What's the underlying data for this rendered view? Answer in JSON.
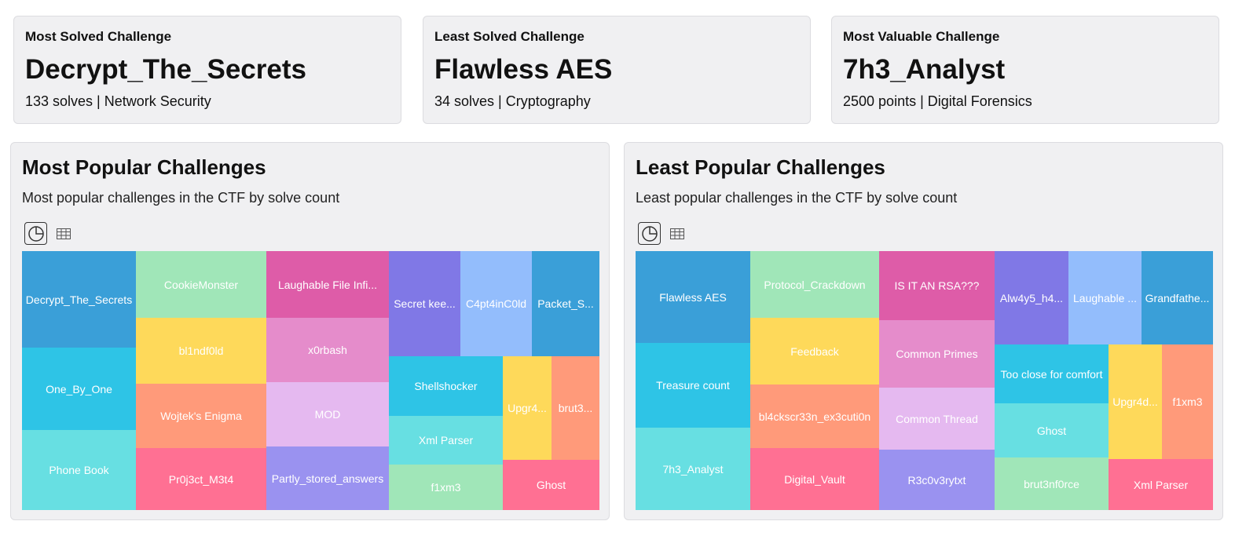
{
  "stats": [
    {
      "label": "Most Solved Challenge",
      "value": "Decrypt_The_Secrets",
      "sub": "133 solves | Network Security"
    },
    {
      "label": "Least Solved Challenge",
      "value": "Flawless AES",
      "sub": "34 solves | Cryptography"
    },
    {
      "label": "Most Valuable Challenge",
      "value": "7h3_Analyst",
      "sub": "2500 points | Digital Forensics"
    }
  ],
  "panels": [
    {
      "title": "Most Popular Challenges",
      "desc": "Most popular challenges in the CTF by solve count",
      "tiles": [
        {
          "label": "Decrypt_The_Secrets",
          "color": "#3a9fd8"
        },
        {
          "label": "One_By_One",
          "color": "#2ec4e6"
        },
        {
          "label": "Phone Book",
          "color": "#67dfe2"
        },
        {
          "label": "CookieMonster",
          "color": "#a0e6b8"
        },
        {
          "label": "bl1ndf0ld",
          "color": "#fed95a"
        },
        {
          "label": "Wojtek's Enigma",
          "color": "#ff9a7a"
        },
        {
          "label": "Pr0j3ct_M3t4",
          "color": "#ff7093"
        },
        {
          "label": "Laughable File Infi...",
          "color": "#de5ca8"
        },
        {
          "label": "x0rbash",
          "color": "#e58ccb"
        },
        {
          "label": "MOD",
          "color": "#e5b9f0"
        },
        {
          "label": "Partly_stored_answers",
          "color": "#9a92f0"
        },
        {
          "label": "Secret kee...",
          "color": "#8078e6"
        },
        {
          "label": "C4pt4inC0ld",
          "color": "#93bdfc"
        },
        {
          "label": "Packet_S...",
          "color": "#3a9fd8"
        },
        {
          "label": "Shellshocker",
          "color": "#2ec4e6"
        },
        {
          "label": "Xml Parser",
          "color": "#67dfe2"
        },
        {
          "label": "f1xm3",
          "color": "#a0e6b8"
        },
        {
          "label": "Upgr4...",
          "color": "#fed95a"
        },
        {
          "label": "brut3...",
          "color": "#ff9a7a"
        },
        {
          "label": "Ghost",
          "color": "#ff7093"
        }
      ]
    },
    {
      "title": "Least Popular Challenges",
      "desc": "Least popular challenges in the CTF by solve count",
      "tiles": [
        {
          "label": "Flawless AES",
          "color": "#3a9fd8"
        },
        {
          "label": "Treasure count",
          "color": "#2ec4e6"
        },
        {
          "label": "7h3_Analyst",
          "color": "#67dfe2"
        },
        {
          "label": "Protocol_Crackdown",
          "color": "#a0e6b8"
        },
        {
          "label": "Feedback",
          "color": "#fed95a"
        },
        {
          "label": "bl4ckscr33n_ex3cuti0n",
          "color": "#ff9a7a"
        },
        {
          "label": "Digital_Vault",
          "color": "#ff7093"
        },
        {
          "label": "IS IT AN RSA???",
          "color": "#de5ca8"
        },
        {
          "label": "Common Primes",
          "color": "#e58ccb"
        },
        {
          "label": "Common Thread",
          "color": "#e5b9f0"
        },
        {
          "label": "R3c0v3rytxt",
          "color": "#9a92f0"
        },
        {
          "label": "Alw4y5_h4...",
          "color": "#8078e6"
        },
        {
          "label": "Laughable ...",
          "color": "#93bdfc"
        },
        {
          "label": "Grandfathe...",
          "color": "#3a9fd8"
        },
        {
          "label": "Too close for comfort",
          "color": "#2ec4e6"
        },
        {
          "label": "Ghost",
          "color": "#67dfe2"
        },
        {
          "label": "brut3nf0rce",
          "color": "#a0e6b8"
        },
        {
          "label": "Upgr4d...",
          "color": "#fed95a"
        },
        {
          "label": "f1xm3",
          "color": "#ff9a7a"
        },
        {
          "label": "Xml Parser",
          "color": "#ff7093"
        }
      ]
    }
  ]
}
